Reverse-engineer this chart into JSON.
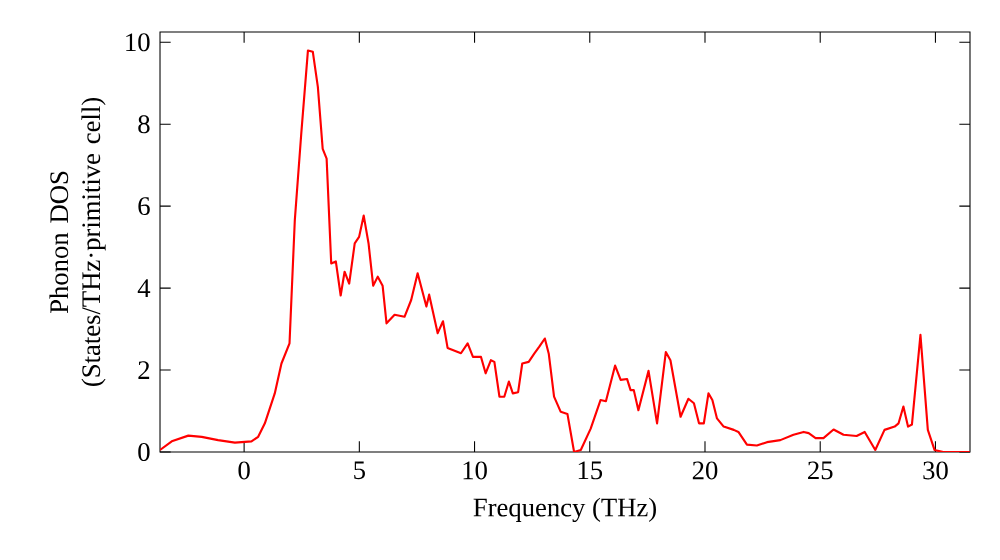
{
  "chart_data": {
    "type": "line",
    "xlabel": "Frequency (THz)",
    "ylabel": "Phonon DOS (States/THz·primitive cell)",
    "xlim": [
      -3.65,
      31.5
    ],
    "ylim": [
      0,
      10.25
    ],
    "xticks": [
      0,
      5,
      10,
      15,
      20,
      25,
      30
    ],
    "yticks": [
      0,
      2,
      4,
      6,
      8,
      10
    ],
    "grid": false,
    "marker": "none",
    "line_style": "solid",
    "series": [
      {
        "color": "#ff0000",
        "x": [
          -3.65,
          -3.14,
          -2.42,
          -1.84,
          -1.13,
          -0.4,
          0.32,
          0.61,
          0.9,
          1.33,
          1.62,
          1.97,
          2.2,
          2.48,
          2.77,
          2.98,
          3.2,
          3.41,
          3.58,
          3.78,
          3.98,
          4.19,
          4.36,
          4.56,
          4.8,
          4.99,
          5.19,
          5.4,
          5.6,
          5.8,
          6.01,
          6.18,
          6.53,
          6.96,
          7.25,
          7.53,
          7.91,
          8.03,
          8.4,
          8.63,
          8.83,
          9.41,
          9.7,
          9.93,
          10.28,
          10.48,
          10.71,
          10.86,
          11.08,
          11.29,
          11.49,
          11.66,
          11.89,
          12.07,
          12.35,
          12.59,
          12.81,
          13.05,
          13.22,
          13.45,
          13.74,
          14.03,
          14.32,
          14.61,
          15.04,
          15.47,
          15.7,
          16.1,
          16.34,
          16.62,
          16.77,
          16.91,
          17.11,
          17.55,
          17.92,
          18.3,
          18.5,
          18.94,
          19.28,
          19.52,
          19.74,
          19.95,
          20.15,
          20.32,
          20.52,
          20.81,
          21.25,
          21.45,
          21.82,
          22.25,
          22.69,
          23.27,
          23.84,
          24.28,
          24.5,
          24.8,
          25.14,
          25.58,
          26.01,
          26.58,
          26.93,
          27.39,
          27.79,
          28.23,
          28.4,
          28.61,
          28.81,
          28.98,
          29.35,
          29.67,
          29.96,
          30.34,
          31.49
        ],
        "values": [
          0.05,
          0.26,
          0.4,
          0.37,
          0.29,
          0.23,
          0.26,
          0.37,
          0.7,
          1.43,
          2.16,
          2.65,
          5.66,
          7.77,
          9.8,
          9.77,
          8.91,
          7.4,
          7.16,
          4.6,
          4.65,
          3.82,
          4.4,
          4.11,
          5.09,
          5.25,
          5.77,
          5.09,
          4.06,
          4.28,
          4.06,
          3.14,
          3.35,
          3.3,
          3.71,
          4.36,
          3.55,
          3.84,
          2.9,
          3.19,
          2.54,
          2.41,
          2.65,
          2.32,
          2.32,
          1.92,
          2.24,
          2.2,
          1.35,
          1.35,
          1.72,
          1.43,
          1.46,
          2.16,
          2.2,
          2.4,
          2.57,
          2.77,
          2.4,
          1.35,
          0.98,
          0.93,
          0,
          0.05,
          0.57,
          1.27,
          1.24,
          2.11,
          1.76,
          1.78,
          1.51,
          1.51,
          1.02,
          1.98,
          0.7,
          2.44,
          2.24,
          0.86,
          1.3,
          1.19,
          0.7,
          0.7,
          1.43,
          1.27,
          0.82,
          0.62,
          0.54,
          0.49,
          0.18,
          0.16,
          0.24,
          0.29,
          0.42,
          0.49,
          0.46,
          0.34,
          0.34,
          0.55,
          0.42,
          0.39,
          0.49,
          0.05,
          0.54,
          0.62,
          0.7,
          1.11,
          0.62,
          0.67,
          2.86,
          0.54,
          0.05,
          0,
          0
        ]
      }
    ]
  }
}
